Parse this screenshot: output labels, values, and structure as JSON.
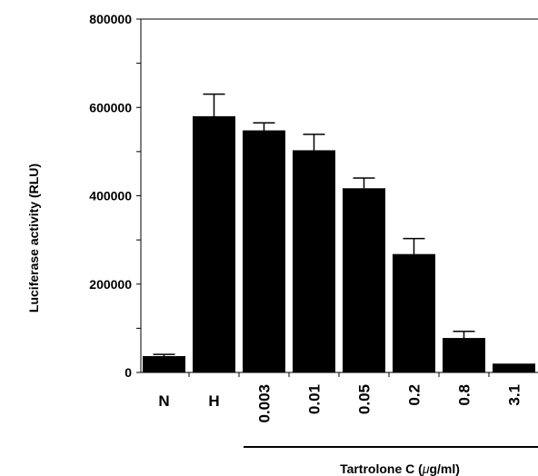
{
  "chart_data": {
    "type": "bar",
    "title": "",
    "ylabel": "Luciferase activity (RLU)",
    "group_label_prefix": "Tartrolone C (",
    "group_label_unit_symbol": "μ",
    "group_label_suffix": "g/ml)",
    "ylim": [
      0,
      800000
    ],
    "yticks": [
      0,
      200000,
      400000,
      600000,
      800000
    ],
    "ytick_labels": [
      "0",
      "200000",
      "400000",
      "600000",
      "800000"
    ],
    "categories": [
      "N",
      "H",
      "0.003",
      "0.01",
      "0.05",
      "0.2",
      "0.8",
      "3.1"
    ],
    "values": [
      37000,
      580000,
      548000,
      503000,
      417000,
      268000,
      78000,
      20000
    ],
    "errors": [
      4000,
      50000,
      17000,
      36000,
      23000,
      35000,
      15000,
      0
    ],
    "bar_color": "#000000",
    "grid": false
  }
}
